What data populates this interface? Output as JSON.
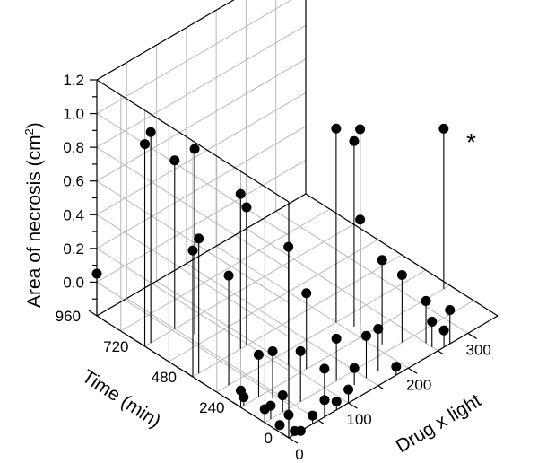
{
  "chart_data": {
    "type": "scatter",
    "subtype": "3d-stem",
    "title": "",
    "zlabel": "Area of necrosis (cm",
    "zlabel_sup": "2",
    "zlabel_end": ")",
    "ylabel": "Time (min)",
    "xlabel": "Drug x light",
    "zlim": [
      -0.2,
      1.2
    ],
    "zticks": [
      "1.2",
      "1.0",
      "0.8",
      "0.6",
      "0.4",
      "0.2",
      "0.0"
    ],
    "zticks_values": [
      1.2,
      1.0,
      0.8,
      0.6,
      0.4,
      0.2,
      0.0
    ],
    "ylim": [
      0,
      960
    ],
    "yticks": [
      "960",
      "720",
      "480",
      "240",
      "0"
    ],
    "yticks_values": [
      960,
      720,
      480,
      240,
      0
    ],
    "xlim": [
      0,
      350
    ],
    "xticks": [
      "0",
      "100",
      "200",
      "300"
    ],
    "xticks_values": [
      0,
      100,
      200,
      300
    ],
    "grid": true,
    "annotation": "*",
    "points": [
      {
        "x": 0,
        "y": 960,
        "z": 0.05
      },
      {
        "x": 0,
        "y": 720,
        "z": 1.0
      },
      {
        "x": 10,
        "y": 720,
        "z": 1.05
      },
      {
        "x": 0,
        "y": 480,
        "z": 0.55
      },
      {
        "x": 10,
        "y": 480,
        "z": 0.6
      },
      {
        "x": 20,
        "y": 360,
        "z": 0.45
      },
      {
        "x": 50,
        "y": 720,
        "z": 0.8
      },
      {
        "x": 60,
        "y": 650,
        "z": 0.9
      },
      {
        "x": 80,
        "y": 480,
        "z": 0.72
      },
      {
        "x": 90,
        "y": 480,
        "z": 0.62
      },
      {
        "x": 100,
        "y": 300,
        "z": 0.5
      },
      {
        "x": 110,
        "y": 240,
        "z": 0.25
      },
      {
        "x": 120,
        "y": 120,
        "z": 0.05
      },
      {
        "x": 130,
        "y": 60,
        "z": -0.1
      },
      {
        "x": 80,
        "y": 60,
        "z": 0.0
      },
      {
        "x": 60,
        "y": 120,
        "z": 0.1
      },
      {
        "x": 40,
        "y": 200,
        "z": 0.08
      },
      {
        "x": 30,
        "y": 240,
        "z": 0.05
      },
      {
        "x": 30,
        "y": 120,
        "z": -0.1
      },
      {
        "x": 20,
        "y": 60,
        "z": -0.15
      },
      {
        "x": 10,
        "y": 120,
        "z": -0.12
      },
      {
        "x": 5,
        "y": 240,
        "z": -0.15
      },
      {
        "x": 0,
        "y": 240,
        "z": -0.1
      },
      {
        "x": 0,
        "y": 120,
        "z": -0.12
      },
      {
        "x": 5,
        "y": 60,
        "z": -0.18
      },
      {
        "x": 20,
        "y": 0,
        "z": -0.2
      },
      {
        "x": 40,
        "y": 0,
        "z": -0.15
      },
      {
        "x": 60,
        "y": 0,
        "z": -0.1
      },
      {
        "x": 80,
        "y": 0,
        "z": -0.15
      },
      {
        "x": 100,
        "y": 0,
        "z": -0.12
      },
      {
        "x": 10,
        "y": 0,
        "z": -0.18
      },
      {
        "x": 150,
        "y": 60,
        "z": 0.05
      },
      {
        "x": 170,
        "y": 60,
        "z": 0.05
      },
      {
        "x": 180,
        "y": 0,
        "z": -0.15
      },
      {
        "x": 200,
        "y": 360,
        "z": 0.95
      },
      {
        "x": 210,
        "y": 300,
        "z": 0.9
      },
      {
        "x": 220,
        "y": 300,
        "z": 0.95
      },
      {
        "x": 200,
        "y": 240,
        "z": 0.5
      },
      {
        "x": 210,
        "y": 160,
        "z": 0.3
      },
      {
        "x": 230,
        "y": 120,
        "z": 0.2
      },
      {
        "x": 250,
        "y": 60,
        "z": 0.05
      },
      {
        "x": 250,
        "y": 30,
        "z": -0.05
      },
      {
        "x": 260,
        "y": 0,
        "z": -0.1
      },
      {
        "x": 270,
        "y": 0,
        "z": 0.0
      },
      {
        "x": 340,
        "y": 240,
        "z": 0.75
      }
    ]
  }
}
